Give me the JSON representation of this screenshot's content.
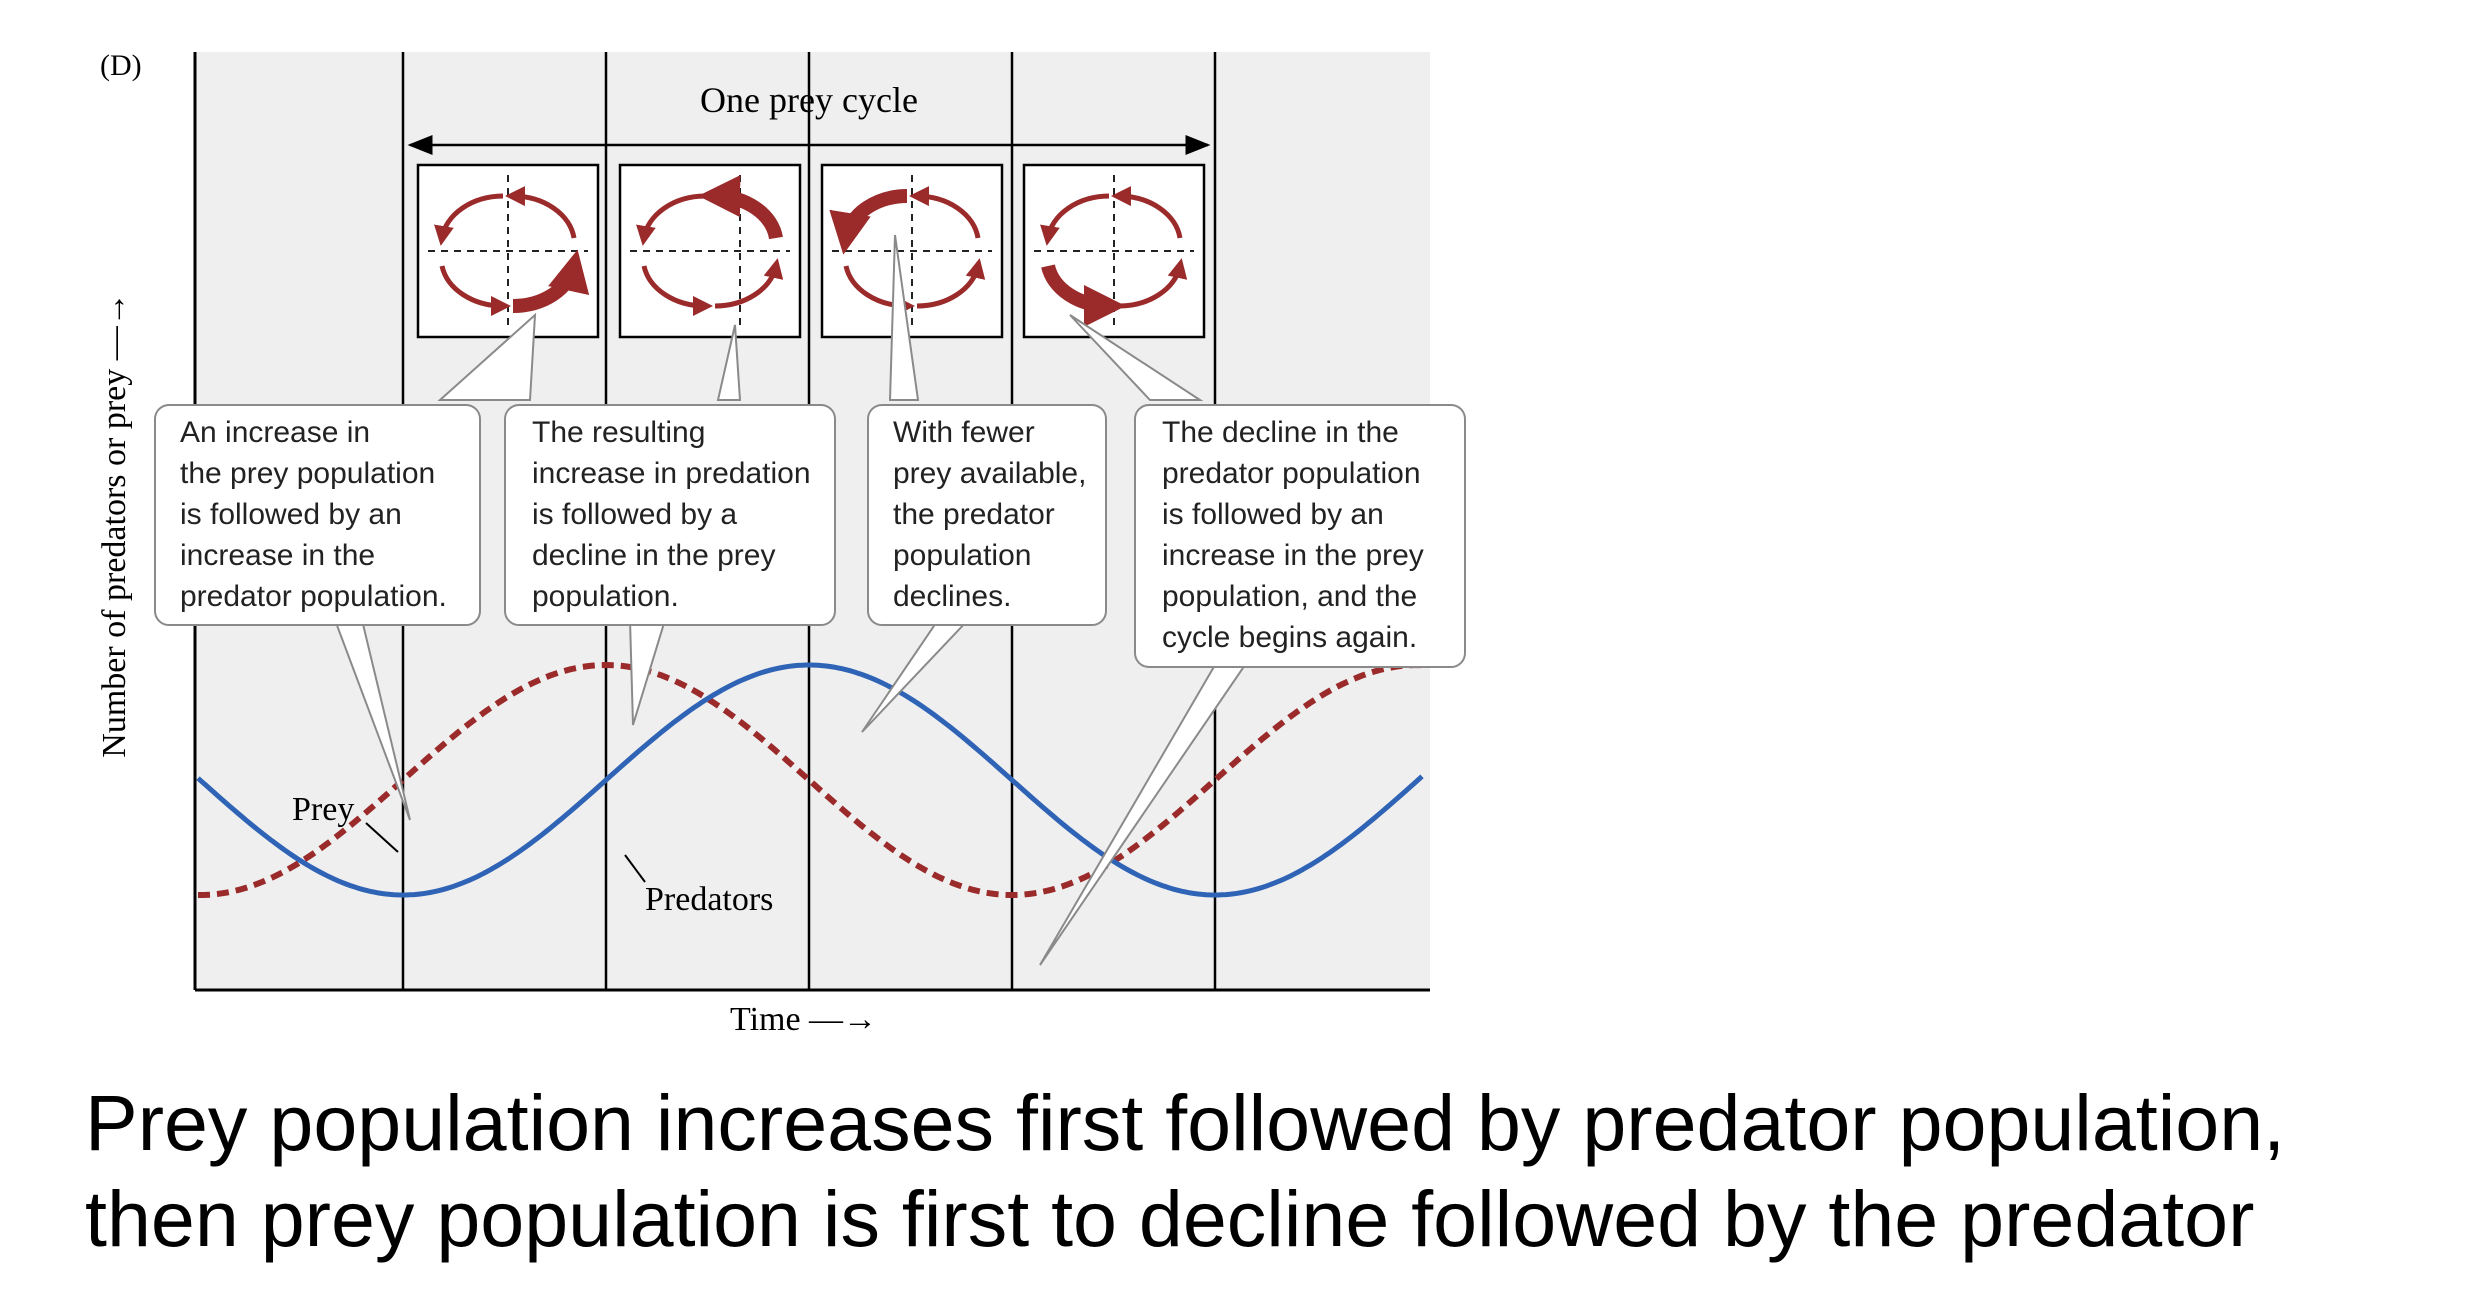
{
  "panel_label": "(D)",
  "cycle_label": "One prey cycle",
  "y_axis_label": "Number of predators or prey —→",
  "x_axis_label": "Time —→",
  "prey_label": "Prey",
  "predators_label": "Predators",
  "colors": {
    "prey": "#9b2a2a",
    "predators": "#2f63b5",
    "plot_background": "#efefef",
    "arrow": "#9b2a2a"
  },
  "callouts": [
    {
      "lines": [
        "An increase in",
        "the prey population",
        "is followed by an",
        "increase in the",
        "predator population."
      ]
    },
    {
      "lines": [
        "The resulting",
        "increase in predation",
        "is followed by a",
        "decline in the prey",
        "population."
      ]
    },
    {
      "lines": [
        "With fewer",
        "prey available,",
        "the predator",
        "population",
        "declines."
      ]
    },
    {
      "lines": [
        "The decline in the",
        "predator population",
        "is followed by an",
        "increase in the prey",
        "population, and the",
        "cycle begins again."
      ]
    }
  ],
  "caption": {
    "line1": "Prey population increases first followed by predator population,",
    "line2": "then prey population is first to decline followed by the predator"
  }
}
